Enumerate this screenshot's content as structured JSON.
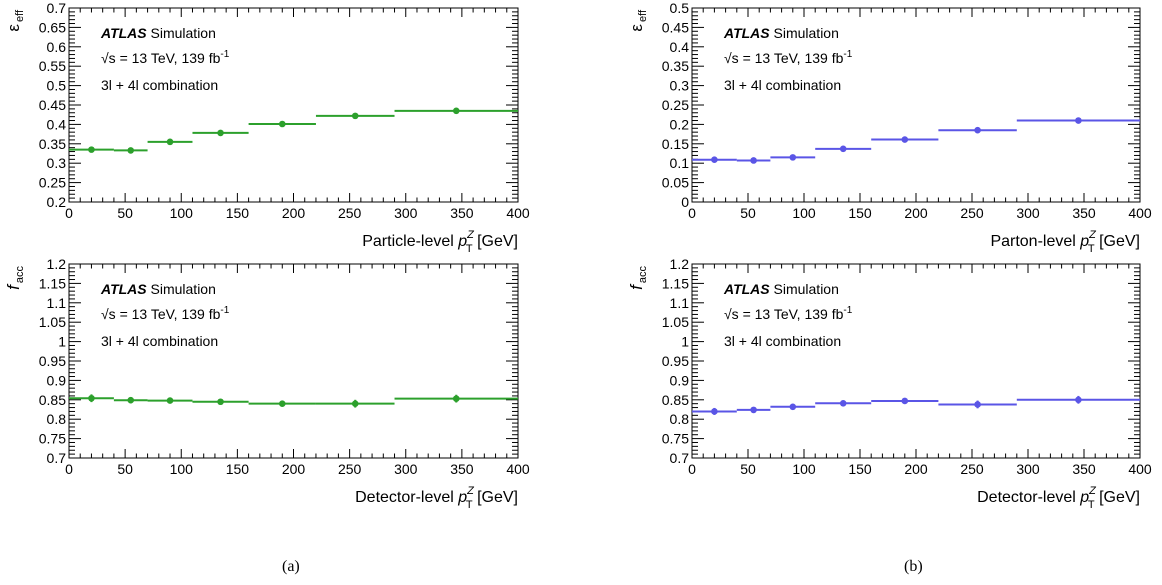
{
  "captions": [
    "(a)",
    "(b)"
  ],
  "colors": {
    "green": "#2ca02c",
    "blue": "#5a55e6",
    "axis": "#000000"
  },
  "chart_data": [
    {
      "type": "scatter",
      "panel": "a-top",
      "color": "#2ca02c",
      "ylabel_main": "ε",
      "ylabel_sub": "eff",
      "xlabel_main": "Particle-level ",
      "xlabel_var": "p",
      "xlabel_sub": "T",
      "xlabel_sup": "Z",
      "xlabel_unit": " [GeV]",
      "xlim": [
        0,
        400
      ],
      "ylim": [
        0.2,
        0.7
      ],
      "xticks": [
        0,
        50,
        100,
        150,
        200,
        250,
        300,
        350,
        400
      ],
      "xtick_labels": [
        "0",
        "50",
        "100",
        "150",
        "200",
        "250",
        "300",
        "350",
        "400"
      ],
      "yticks": [
        0.2,
        0.25,
        0.3,
        0.35,
        0.4,
        0.45,
        0.5,
        0.55,
        0.6,
        0.65,
        0.7
      ],
      "ytick_labels": [
        "0.2",
        "0.25",
        "0.3",
        "0.35",
        "0.4",
        "0.45",
        "0.5",
        "0.55",
        "0.6",
        "0.65",
        "0.7"
      ],
      "bin_edges": [
        0,
        40,
        70,
        110,
        160,
        220,
        290,
        400
      ],
      "x": [
        20,
        55,
        90,
        135,
        190,
        255,
        345
      ],
      "values": [
        0.335,
        0.333,
        0.355,
        0.378,
        0.401,
        0.422,
        0.435
      ],
      "errors": [
        0.003,
        0.003,
        0.003,
        0.003,
        0.003,
        0.003,
        0.003
      ],
      "annotation": {
        "atlas": "ATLAS",
        "label": " Simulation",
        "energy_pre": "√s = 13 TeV, 139 fb",
        "energy_sup": "-1",
        "combination": "3l + 4l combination"
      }
    },
    {
      "type": "scatter",
      "panel": "b-top",
      "color": "#5a55e6",
      "ylabel_main": "ε",
      "ylabel_sub": "eff",
      "xlabel_main": "Parton-level ",
      "xlabel_var": "p",
      "xlabel_sub": "T",
      "xlabel_sup": "Z",
      "xlabel_unit": " [GeV]",
      "xlim": [
        0,
        400
      ],
      "ylim": [
        0,
        0.5
      ],
      "xticks": [
        0,
        50,
        100,
        150,
        200,
        250,
        300,
        350,
        400
      ],
      "xtick_labels": [
        "0",
        "50",
        "100",
        "150",
        "200",
        "250",
        "300",
        "350",
        "400"
      ],
      "yticks": [
        0,
        0.05,
        0.1,
        0.15,
        0.2,
        0.25,
        0.3,
        0.35,
        0.4,
        0.45,
        0.5
      ],
      "ytick_labels": [
        "0",
        "0.05",
        "0.1",
        "0.15",
        "0.2",
        "0.25",
        "0.3",
        "0.35",
        "0.4",
        "0.45",
        "0.5"
      ],
      "bin_edges": [
        0,
        40,
        70,
        110,
        160,
        220,
        290,
        400
      ],
      "x": [
        20,
        55,
        90,
        135,
        190,
        255,
        345
      ],
      "values": [
        0.109,
        0.107,
        0.115,
        0.137,
        0.161,
        0.185,
        0.21
      ],
      "errors": [
        0.003,
        0.003,
        0.003,
        0.003,
        0.003,
        0.003,
        0.003
      ],
      "annotation": {
        "atlas": "ATLAS",
        "label": " Simulation",
        "energy_pre": "√s = 13 TeV, 139 fb",
        "energy_sup": "-1",
        "combination": "3l + 4l combination"
      }
    },
    {
      "type": "scatter",
      "panel": "a-bottom",
      "color": "#2ca02c",
      "ylabel_main": "f",
      "ylabel_sub": "acc",
      "xlabel_main": "Detector-level ",
      "xlabel_var": "p",
      "xlabel_sub": "T",
      "xlabel_sup": "Z",
      "xlabel_unit": " [GeV]",
      "xlim": [
        0,
        400
      ],
      "ylim": [
        0.7,
        1.2
      ],
      "xticks": [
        0,
        50,
        100,
        150,
        200,
        250,
        300,
        350,
        400
      ],
      "xtick_labels": [
        "0",
        "50",
        "100",
        "150",
        "200",
        "250",
        "300",
        "350",
        "400"
      ],
      "yticks": [
        0.7,
        0.75,
        0.8,
        0.85,
        0.9,
        0.95,
        1.0,
        1.05,
        1.1,
        1.15,
        1.2
      ],
      "ytick_labels": [
        "0.7",
        "0.75",
        "0.8",
        "0.85",
        "0.9",
        "0.95",
        "1",
        "1.05",
        "1.1",
        "1.15",
        "1.2"
      ],
      "bin_edges": [
        0,
        40,
        70,
        110,
        160,
        220,
        290,
        400
      ],
      "x": [
        20,
        55,
        90,
        135,
        190,
        255,
        345
      ],
      "values": [
        0.854,
        0.849,
        0.848,
        0.845,
        0.84,
        0.84,
        0.853
      ],
      "errors": [
        0.01,
        0.008,
        0.006,
        0.006,
        0.006,
        0.01,
        0.01
      ],
      "annotation": {
        "atlas": "ATLAS",
        "label": " Simulation",
        "energy_pre": "√s = 13 TeV, 139 fb",
        "energy_sup": "-1",
        "combination": "3l + 4l combination"
      }
    },
    {
      "type": "scatter",
      "panel": "b-bottom",
      "color": "#5a55e6",
      "ylabel_main": "f",
      "ylabel_sub": "acc",
      "xlabel_main": "Detector-level ",
      "xlabel_var": "p",
      "xlabel_sub": "T",
      "xlabel_sup": "Z",
      "xlabel_unit": " [GeV]",
      "xlim": [
        0,
        400
      ],
      "ylim": [
        0.7,
        1.2
      ],
      "xticks": [
        0,
        50,
        100,
        150,
        200,
        250,
        300,
        350,
        400
      ],
      "xtick_labels": [
        "0",
        "50",
        "100",
        "150",
        "200",
        "250",
        "300",
        "350",
        "400"
      ],
      "yticks": [
        0.7,
        0.75,
        0.8,
        0.85,
        0.9,
        0.95,
        1.0,
        1.05,
        1.1,
        1.15,
        1.2
      ],
      "ytick_labels": [
        "0.7",
        "0.75",
        "0.8",
        "0.85",
        "0.9",
        "0.95",
        "1",
        "1.05",
        "1.1",
        "1.15",
        "1.2"
      ],
      "bin_edges": [
        0,
        40,
        70,
        110,
        160,
        220,
        290,
        400
      ],
      "x": [
        20,
        55,
        90,
        135,
        190,
        255,
        345
      ],
      "values": [
        0.82,
        0.824,
        0.832,
        0.841,
        0.847,
        0.838,
        0.85
      ],
      "errors": [
        0.009,
        0.007,
        0.006,
        0.006,
        0.007,
        0.01,
        0.01
      ],
      "annotation": {
        "atlas": "ATLAS",
        "label": " Simulation",
        "energy_pre": "√s = 13 TeV, 139 fb",
        "energy_sup": "-1",
        "combination": "3l + 4l combination"
      }
    }
  ]
}
